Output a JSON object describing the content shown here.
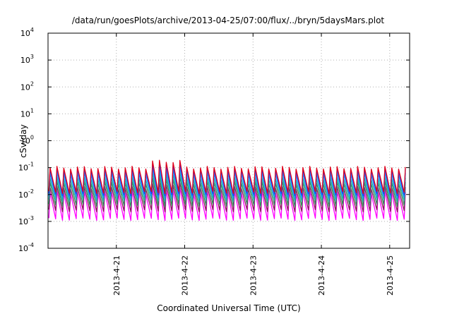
{
  "chart_data": {
    "type": "line",
    "title": "/data/run/goesPlots/archive/2013-04-25/07:00/flux/../bryn/5daysMars.plot",
    "xlabel": "Coordinated Universal Time (UTC)",
    "ylabel": "cSv/day",
    "yscale": "log",
    "ylim": [
      0.0001,
      10000
    ],
    "xlim": [
      "2013-04-20T00:00",
      "2013-04-25T07:00"
    ],
    "grid": true,
    "legend": "none",
    "y_ticks": [
      {
        "base": "10",
        "exp": "4",
        "value": 10000
      },
      {
        "base": "10",
        "exp": "3",
        "value": 1000
      },
      {
        "base": "10",
        "exp": "2",
        "value": 100
      },
      {
        "base": "10",
        "exp": "1",
        "value": 10
      },
      {
        "base": "10",
        "exp": "0",
        "value": 1
      },
      {
        "base": "10",
        "exp": "-1",
        "value": 0.1
      },
      {
        "base": "10",
        "exp": "-2",
        "value": 0.01
      },
      {
        "base": "10",
        "exp": "-3",
        "value": 0.001
      },
      {
        "base": "10",
        "exp": "-4",
        "value": 0.0001
      }
    ],
    "x_ticks": [
      {
        "label": "2013-4-21",
        "value": "2013-04-21T00:00"
      },
      {
        "label": "2013-4-22",
        "value": "2013-04-22T00:00"
      },
      {
        "label": "2013-4-23",
        "value": "2013-04-23T00:00"
      },
      {
        "label": "2013-4-24",
        "value": "2013-04-24T00:00"
      },
      {
        "label": "2013-4-25",
        "value": "2013-04-25T00:00"
      }
    ],
    "series_pattern": "sawtooth dose rate, rising peaks roughly every 2.4 hours",
    "peak_period_hours": 2.4,
    "series": [
      {
        "color": "#e0001a",
        "peak": 0.1,
        "trough": 0.012,
        "peak_enhanced": 0.17
      },
      {
        "color": "#1a3cff",
        "peak": 0.085,
        "trough": 0.01,
        "peak_enhanced": 0.13
      },
      {
        "color": "#1e90ff",
        "peak": 0.06,
        "trough": 0.008,
        "peak_enhanced": 0.09
      },
      {
        "color": "#20b2aa",
        "peak": 0.04,
        "trough": 0.006,
        "peak_enhanced": 0.06
      },
      {
        "color": "#2e8b57",
        "peak": 0.028,
        "trough": 0.004,
        "peak_enhanced": 0.04
      },
      {
        "color": "#8b1a5a",
        "peak": 0.018,
        "trough": 0.0025,
        "peak_enhanced": 0.025
      },
      {
        "color": "#ff00ff",
        "peak": 0.012,
        "trough": 0.0012,
        "peak_enhanced": 0.016
      }
    ],
    "enhanced_window": [
      "2013-04-21T12:00",
      "2013-04-22T00:00"
    ]
  }
}
